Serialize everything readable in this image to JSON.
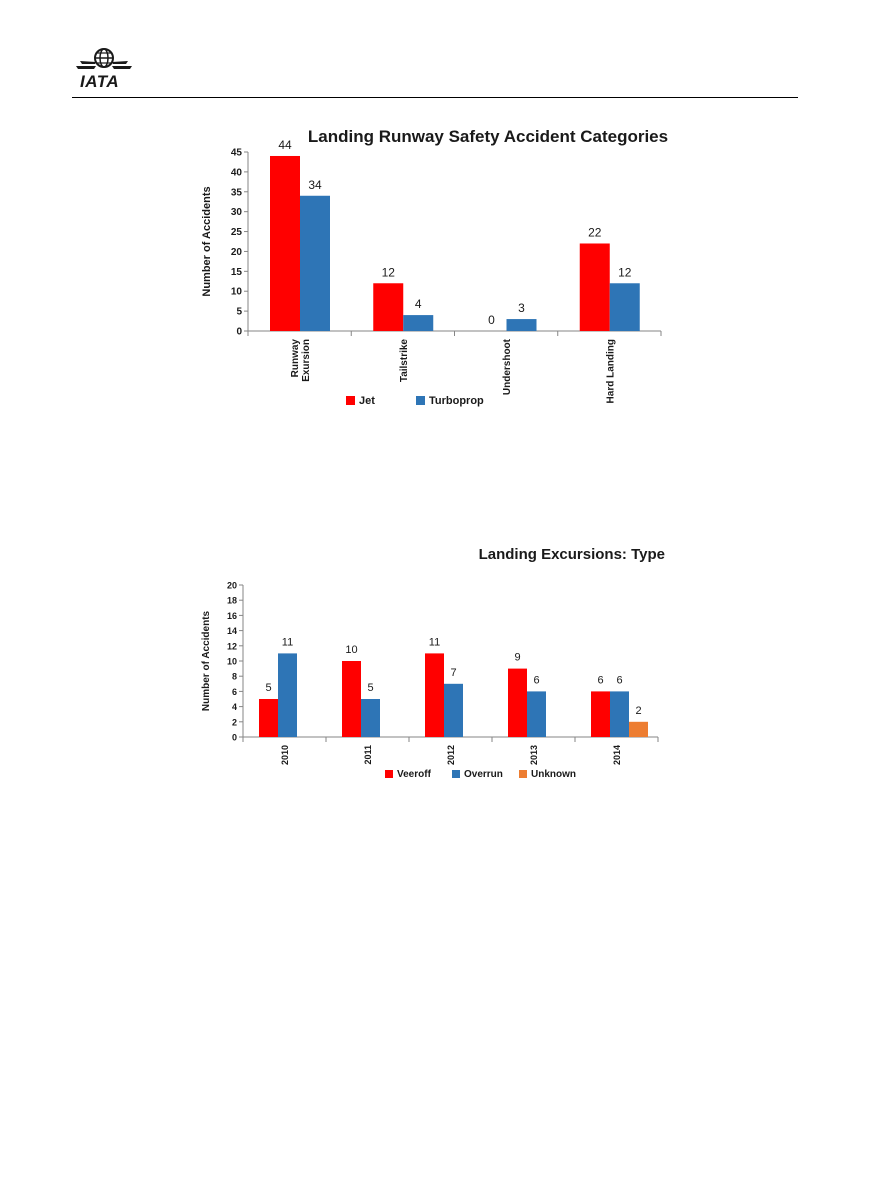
{
  "header": {
    "logo_text": "IATA"
  },
  "colors": {
    "jet": "#ff0000",
    "turboprop": "#2e75b6",
    "veeroff": "#ff0000",
    "overrun": "#2e75b6",
    "unknown": "#ed7d31"
  },
  "chart_data": [
    {
      "type": "bar",
      "title": "Landing Runway Safety Accident Categories",
      "ylabel": "Number of Accidents",
      "xlabel": "",
      "ylim": [
        0,
        45
      ],
      "yticks": [
        0,
        5,
        10,
        15,
        20,
        25,
        30,
        35,
        40,
        45
      ],
      "categories": [
        [
          "Runway",
          "Exursion"
        ],
        [
          "Tailstrike"
        ],
        [
          "Undershoot"
        ],
        [
          "Hard Landing"
        ]
      ],
      "series": [
        {
          "name": "Jet",
          "values": [
            44,
            12,
            0,
            22
          ],
          "color": "#ff0000"
        },
        {
          "name": "Turboprop",
          "values": [
            34,
            4,
            3,
            12
          ],
          "color": "#2e75b6"
        }
      ],
      "data_labels": true,
      "legend": "bottom",
      "grid": false
    },
    {
      "type": "bar",
      "title": "Landing Excursions: Type",
      "ylabel": "Number of Accidents",
      "xlabel": "",
      "ylim": [
        0,
        20
      ],
      "yticks": [
        0,
        2,
        4,
        6,
        8,
        10,
        12,
        14,
        16,
        18,
        20
      ],
      "categories": [
        [
          "2010"
        ],
        [
          "2011"
        ],
        [
          "2012"
        ],
        [
          "2013"
        ],
        [
          "2014"
        ]
      ],
      "series": [
        {
          "name": "Veeroff",
          "values": [
            5,
            10,
            11,
            9,
            6
          ],
          "color": "#ff0000"
        },
        {
          "name": "Overrun",
          "values": [
            11,
            5,
            7,
            6,
            6
          ],
          "color": "#2e75b6"
        },
        {
          "name": "Unknown",
          "values": [
            null,
            null,
            null,
            null,
            2
          ],
          "color": "#ed7d31"
        }
      ],
      "data_labels": true,
      "legend": "bottom",
      "grid": false
    }
  ]
}
